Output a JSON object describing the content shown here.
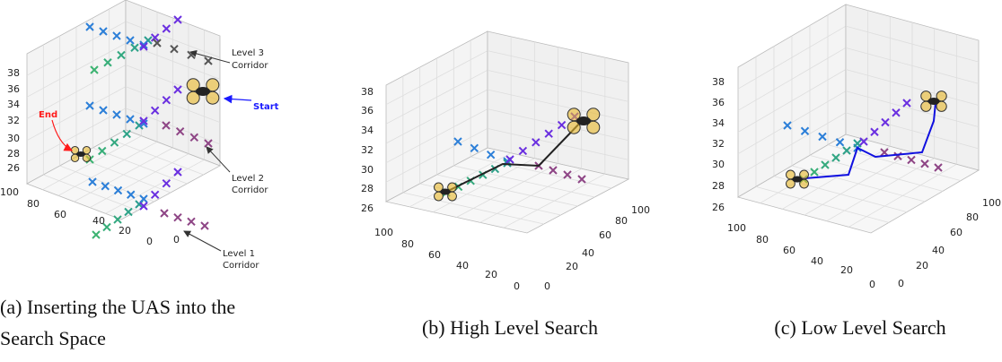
{
  "panels": [
    {
      "caption": [
        "(a) Inserting the UAS into the",
        "Search Space"
      ],
      "z_ticks": [
        "38",
        "36",
        "34",
        "32",
        "30",
        "28",
        "26"
      ],
      "x_ticks": [
        "100",
        "80",
        "60",
        "40",
        "20",
        "0"
      ],
      "y_ticks": [
        "0"
      ],
      "annotations": {
        "level3": [
          "Level 3",
          "Corridor"
        ],
        "start": "Start",
        "end": "End",
        "level2": [
          "Level 2",
          "Corridor"
        ],
        "level1": [
          "Level 1",
          "Corridor"
        ]
      }
    },
    {
      "caption": [
        "(b) High Level Search"
      ],
      "z_ticks": [
        "38",
        "36",
        "34",
        "32",
        "30",
        "28",
        "26"
      ],
      "x_ticks": [
        "100",
        "80",
        "60",
        "40",
        "20",
        "0"
      ],
      "y_ticks": [
        "0",
        "20",
        "40",
        "60",
        "80",
        "100"
      ]
    },
    {
      "caption": [
        "(c) Low Level Search"
      ],
      "z_ticks": [
        "38",
        "36",
        "34",
        "32",
        "30",
        "28",
        "26"
      ],
      "x_ticks": [
        "100",
        "80",
        "60",
        "40",
        "20",
        "0"
      ],
      "y_ticks": [
        "0",
        "20",
        "40",
        "60",
        "80",
        "100"
      ]
    }
  ]
}
